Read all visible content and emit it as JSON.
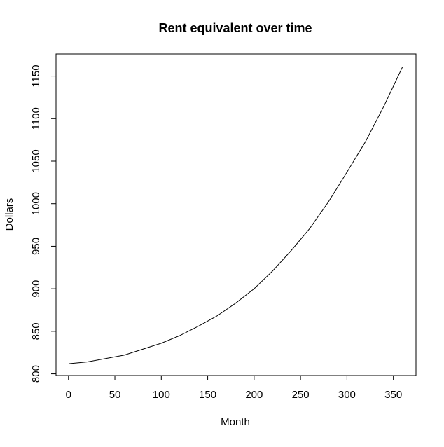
{
  "chart_data": {
    "type": "line",
    "title": "Rent equivalent over time",
    "x_label": "Month",
    "y_label": "Dollars",
    "x": [
      1,
      20,
      40,
      60,
      80,
      100,
      120,
      140,
      160,
      180,
      200,
      220,
      240,
      260,
      280,
      300,
      320,
      340,
      360
    ],
    "series": [
      {
        "name": "Rent equivalent",
        "color": "#000000",
        "values": [
          812,
          814,
          818,
          822,
          829,
          836,
          845,
          856,
          868,
          883,
          900,
          921,
          945,
          971,
          1002,
          1037,
          1073,
          1115,
          1161
        ]
      }
    ],
    "xlim": [
      -13.4,
      374.4
    ],
    "xticks": [
      0,
      50,
      100,
      150,
      200,
      250,
      300,
      350
    ],
    "ylim": [
      798,
      1176
    ],
    "yticks": [
      800,
      850,
      900,
      950,
      1000,
      1050,
      1100,
      1150
    ]
  }
}
